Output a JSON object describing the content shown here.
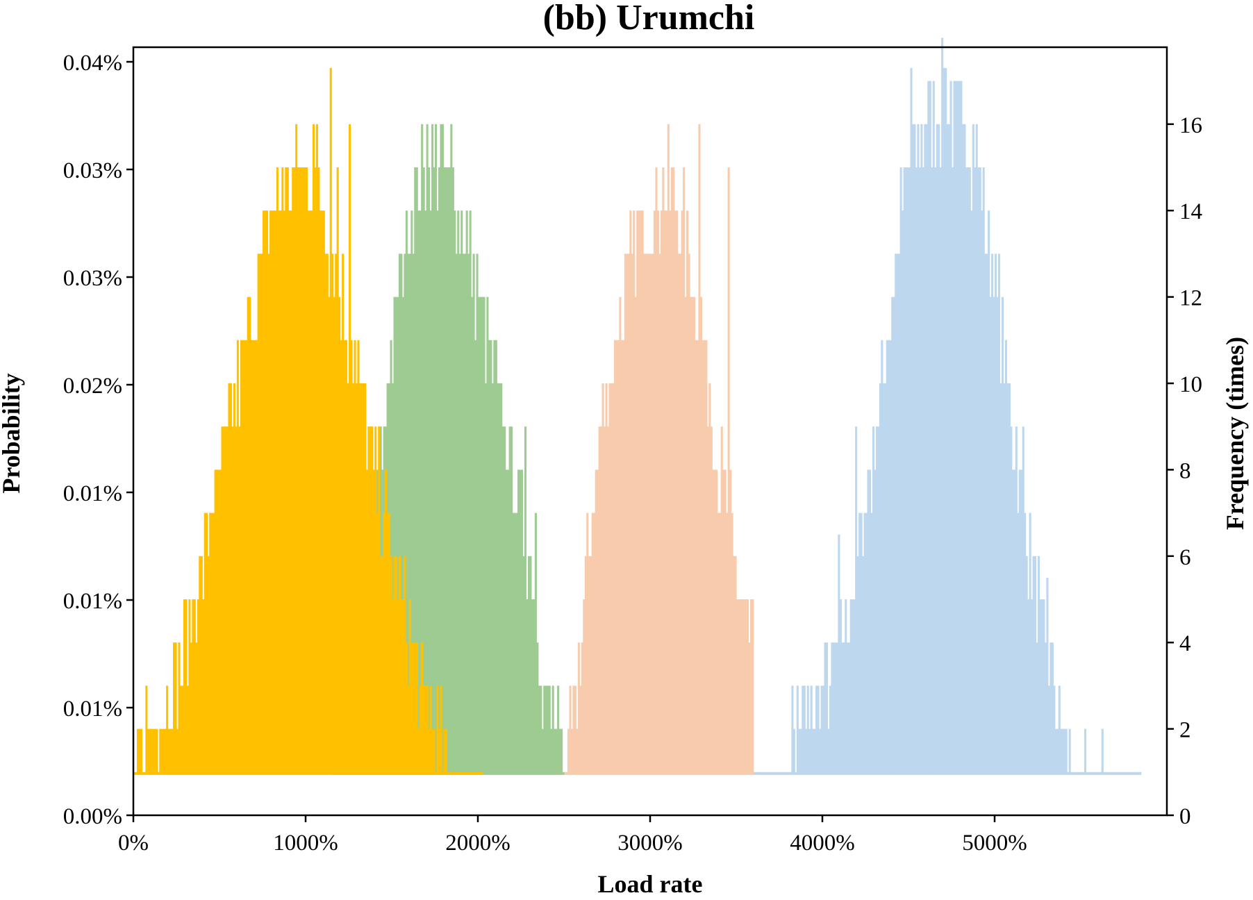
{
  "chart_data": {
    "type": "bar",
    "title": "(bb) Urumchi",
    "xlabel": "Load rate",
    "ylabel_left": "Probability",
    "ylabel_right": "Frequency (times)",
    "x_ticks": [
      "0%",
      "1000%",
      "2000%",
      "3000%",
      "4000%",
      "5000%"
    ],
    "x_tick_values": [
      0,
      1000,
      2000,
      3000,
      4000,
      5000
    ],
    "xlim": [
      0,
      6000
    ],
    "y_left_ticks": [
      "0.00%",
      "0.01%",
      "0.01%",
      "0.01%",
      "0.02%",
      "0.03%",
      "0.03%",
      "0.04%"
    ],
    "y_right_ticks": [
      "0",
      "2",
      "4",
      "6",
      "8",
      "10",
      "12",
      "14",
      "16"
    ],
    "y_right_tick_values": [
      0,
      2,
      4,
      6,
      8,
      10,
      12,
      14,
      16
    ],
    "ylim_right": [
      0,
      17.9
    ],
    "grid": false,
    "legend": "none",
    "bin_width": 10,
    "series": [
      {
        "color": "#BDD7EE",
        "range": [
          3600,
          5850
        ],
        "profile": [
          [
            3600,
            1
          ],
          [
            3800,
            1
          ],
          [
            3820,
            2
          ],
          [
            3900,
            2
          ],
          [
            4000,
            3
          ],
          [
            4100,
            4
          ],
          [
            4200,
            6
          ],
          [
            4300,
            8.5
          ],
          [
            4400,
            12
          ],
          [
            4450,
            14
          ],
          [
            4500,
            15
          ],
          [
            4600,
            16
          ],
          [
            4700,
            16.5
          ],
          [
            4800,
            16
          ],
          [
            4900,
            15
          ],
          [
            5000,
            12.5
          ],
          [
            5100,
            9
          ],
          [
            5200,
            6
          ],
          [
            5300,
            3.5
          ],
          [
            5400,
            2
          ],
          [
            5480,
            1
          ],
          [
            5850,
            1
          ]
        ],
        "spikes": [
          [
            4510,
            17.3
          ],
          [
            4705,
            17.3
          ],
          [
            4820,
            16
          ],
          [
            4590,
            14
          ],
          [
            4960,
            11
          ],
          [
            5160,
            9
          ],
          [
            5300,
            5.5
          ],
          [
            5520,
            2
          ],
          [
            5620,
            2
          ],
          [
            4190,
            9
          ],
          [
            4090,
            6.5
          ]
        ]
      },
      {
        "color": "#F8CBAD",
        "range": [
          2500,
          3600
        ],
        "profile": [
          [
            2500,
            1
          ],
          [
            2550,
            2
          ],
          [
            2640,
            6
          ],
          [
            2700,
            8.5
          ],
          [
            2800,
            11
          ],
          [
            2900,
            13
          ],
          [
            3000,
            14
          ],
          [
            3100,
            14.5
          ],
          [
            3200,
            13
          ],
          [
            3300,
            11
          ],
          [
            3400,
            8
          ],
          [
            3500,
            5.5
          ],
          [
            3580,
            4
          ],
          [
            3650,
            3
          ],
          [
            3750,
            2
          ],
          [
            3800,
            1
          ],
          [
            3600,
            1
          ]
        ],
        "spikes": [
          [
            3280,
            16
          ],
          [
            3190,
            15
          ],
          [
            3450,
            15
          ],
          [
            2880,
            13
          ],
          [
            2940,
            12.5
          ],
          [
            2790,
            7
          ],
          [
            2700,
            6
          ]
        ]
      },
      {
        "color": "#9DCB91",
        "range": [
          1150,
          2500
        ],
        "profile": [
          [
            1150,
            1
          ],
          [
            1200,
            2
          ],
          [
            1300,
            4
          ],
          [
            1400,
            7
          ],
          [
            1500,
            11
          ],
          [
            1600,
            14
          ],
          [
            1700,
            15
          ],
          [
            1800,
            15
          ],
          [
            1900,
            14
          ],
          [
            2000,
            12
          ],
          [
            2100,
            10
          ],
          [
            2200,
            8
          ],
          [
            2300,
            6
          ],
          [
            2380,
            3
          ],
          [
            2450,
            2
          ],
          [
            2500,
            1
          ]
        ],
        "spikes": [
          [
            1700,
            16
          ],
          [
            1780,
            16
          ],
          [
            1840,
            16
          ],
          [
            2270,
            9
          ],
          [
            2330,
            7
          ],
          [
            2410,
            2
          ]
        ]
      },
      {
        "color": "#FFC000",
        "range": [
          0,
          2030
        ],
        "profile": [
          [
            0,
            1
          ],
          [
            60,
            2
          ],
          [
            150,
            2.5
          ],
          [
            250,
            3
          ],
          [
            350,
            5
          ],
          [
            450,
            7
          ],
          [
            550,
            9
          ],
          [
            650,
            11
          ],
          [
            750,
            13
          ],
          [
            850,
            14.5
          ],
          [
            950,
            15
          ],
          [
            1050,
            14.5
          ],
          [
            1150,
            13
          ],
          [
            1250,
            11
          ],
          [
            1350,
            9
          ],
          [
            1450,
            7
          ],
          [
            1550,
            5
          ],
          [
            1650,
            3
          ],
          [
            1750,
            2
          ],
          [
            1850,
            1
          ],
          [
            2030,
            1
          ]
        ],
        "spikes": [
          [
            1140,
            17.3
          ],
          [
            1040,
            16
          ],
          [
            1060,
            16
          ],
          [
            1250,
            16
          ],
          [
            970,
            15
          ],
          [
            1180,
            15
          ],
          [
            900,
            13.5
          ],
          [
            880,
            12.5
          ],
          [
            830,
            11
          ],
          [
            700,
            8
          ],
          [
            630,
            7
          ],
          [
            520,
            6.5
          ],
          [
            420,
            5
          ],
          [
            330,
            3.5
          ],
          [
            80,
            2
          ]
        ]
      }
    ]
  }
}
